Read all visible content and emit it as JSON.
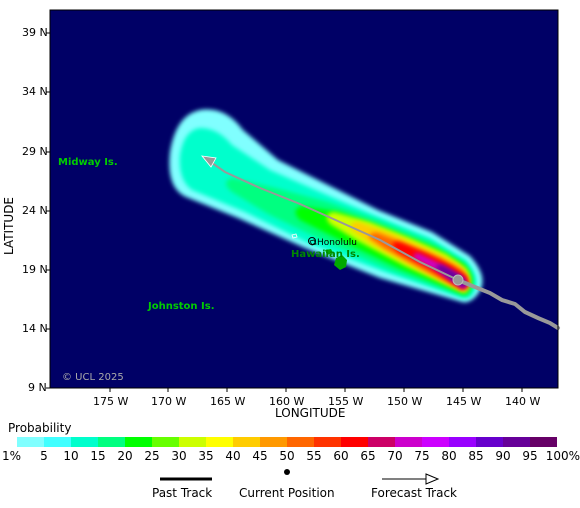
{
  "axes": {
    "ylabel": "LATITUDE",
    "xlabel": "LONGITUDE",
    "lat_ticks": [
      "39 N",
      "34 N",
      "29 N",
      "24 N",
      "19 N",
      "14 N",
      "9 N"
    ],
    "lon_ticks": [
      "175 W",
      "170 W",
      "165 W",
      "160 W",
      "155 W",
      "150 W",
      "145 W",
      "140 W"
    ]
  },
  "map": {
    "ocean_color": "#000066",
    "land_color": "#00aa00",
    "place_labels": {
      "midway": "Midway Is.",
      "johnston": "Johnston Is.",
      "hawaiian": "Hawaiian Is.",
      "honolulu": "Honolulu"
    },
    "copyright": "© UCL 2025"
  },
  "legend": {
    "title": "Probability",
    "colors": [
      "#80ffff",
      "#40ffff",
      "#00ffcc",
      "#00ff80",
      "#00ff00",
      "#66ff00",
      "#ccff00",
      "#ffff00",
      "#ffcc00",
      "#ff9900",
      "#ff6600",
      "#ff3300",
      "#ff0000",
      "#cc0066",
      "#cc00cc",
      "#cc00ff",
      "#9900ff",
      "#6600cc",
      "#660099",
      "#660066"
    ],
    "labels": [
      "1%",
      "5",
      "10",
      "15",
      "20",
      "25",
      "30",
      "35",
      "40",
      "45",
      "50",
      "55",
      "60",
      "65",
      "70",
      "75",
      "80",
      "85",
      "90",
      "95",
      "100%"
    ],
    "past_track": "Past Track",
    "current_position": "Current Position",
    "forecast_track": "Forecast Track"
  }
}
